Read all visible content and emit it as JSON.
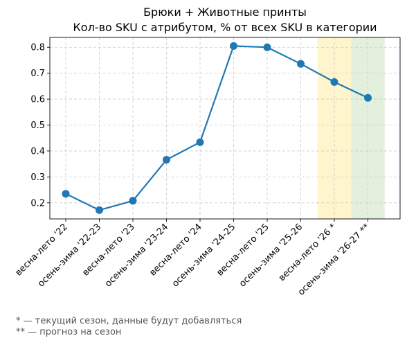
{
  "chart_data": {
    "type": "line",
    "title": "Брюки + Животные принты",
    "subtitle": "Кол-во SKU с атрибутом, % от всех SKU в категории",
    "xlabel": "",
    "ylabel": "",
    "categories": [
      "весна-лето '22",
      "осень-зима '22-23",
      "весна-лето '23",
      "осень-зима '23-24",
      "весна-лето '24",
      "осень-зима '24-25",
      "весна-лето '25",
      "осень-зима '25-26",
      "весна-лето '26 *",
      "осень-зима '26-27 **"
    ],
    "series": [
      {
        "values": [
          0.235,
          0.172,
          0.208,
          0.366,
          0.434,
          0.805,
          0.8,
          0.736,
          0.666,
          0.605
        ]
      }
    ],
    "y_ticks": [
      0.2,
      0.3,
      0.4,
      0.5,
      0.6,
      0.7,
      0.8
    ],
    "ylim": [
      0.138,
      0.838
    ],
    "grid": true,
    "highlight_bands": [
      {
        "category": "весна-лето '26 *",
        "color": "#fff5cc"
      },
      {
        "category": "осень-зима '26-27 **",
        "color": "#e2f0dd"
      }
    ],
    "line_color": "#1f77b4"
  },
  "footnotes": [
    "* — текущий сезон, данные будут добавляться",
    "** — прогноз на сезон"
  ]
}
